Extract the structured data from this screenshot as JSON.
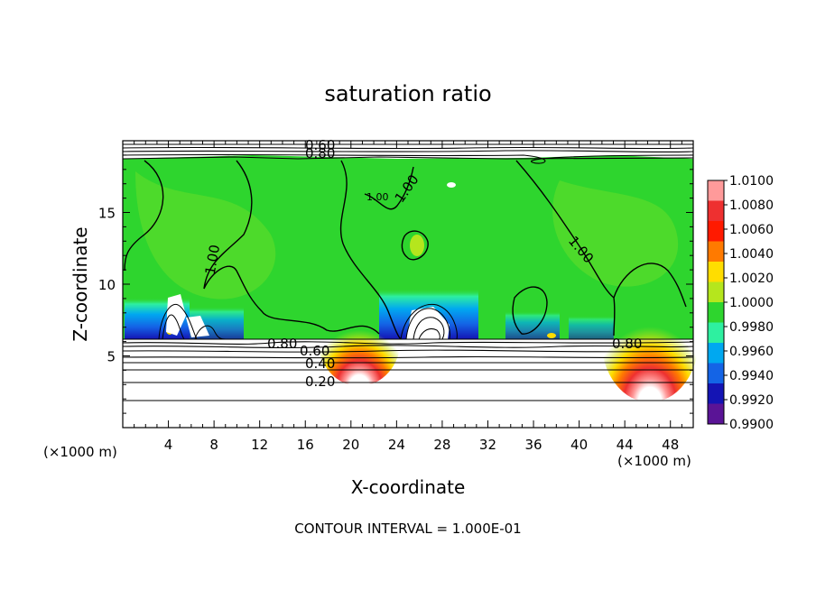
{
  "chart_data": {
    "type": "heatmap",
    "title": "saturation ratio",
    "xlabel": "X-coordinate",
    "ylabel": "Z-coordinate",
    "x_unit_left": "(×1000 m)",
    "x_unit_right": "(×1000 m)",
    "xlim": [
      0,
      50
    ],
    "ylim": [
      0,
      20
    ],
    "xticks": [
      4,
      8,
      12,
      16,
      20,
      24,
      28,
      32,
      36,
      40,
      44,
      48
    ],
    "yticks": [
      5,
      10,
      15
    ],
    "colorbar": {
      "levels": [
        "1.0100",
        "1.0080",
        "1.0060",
        "1.0040",
        "1.0020",
        "1.0000",
        "0.9980",
        "0.9960",
        "0.9940",
        "0.9920",
        "0.9900"
      ],
      "colors": [
        "#ff9a9a",
        "#ee3030",
        "#ff1a00",
        "#ff7a00",
        "#ffdd00",
        "#b5e61d",
        "#2ed52e",
        "#2ef0a0",
        "#00a8f0",
        "#1464e6",
        "#1414b4",
        "#5a1496"
      ]
    },
    "contour_labels": [
      "0.60",
      "0.80",
      "1.00",
      "1.00",
      "1.00",
      "1.00",
      "0.80",
      "0.60",
      "0.40",
      "0.20",
      "0.80"
    ],
    "footer": "CONTOUR INTERVAL = 1.000E-01"
  }
}
